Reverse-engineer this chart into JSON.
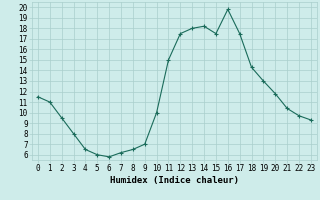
{
  "x": [
    0,
    1,
    2,
    3,
    4,
    5,
    6,
    7,
    8,
    9,
    10,
    11,
    12,
    13,
    14,
    15,
    16,
    17,
    18,
    19,
    20,
    21,
    22,
    23
  ],
  "y": [
    11.5,
    11.0,
    9.5,
    8.0,
    6.5,
    6.0,
    5.8,
    6.2,
    6.5,
    7.0,
    10.0,
    15.0,
    17.5,
    18.0,
    18.2,
    17.5,
    19.8,
    17.5,
    14.3,
    13.0,
    11.8,
    10.4,
    9.7,
    9.3
  ],
  "line_color": "#1a6b5a",
  "marker": "+",
  "marker_size": 3,
  "bg_color": "#ceecea",
  "grid_color": "#aacfcc",
  "xlabel": "Humidex (Indice chaleur)",
  "ylim": [
    5.5,
    20.5
  ],
  "xlim": [
    -0.5,
    23.5
  ],
  "yticks": [
    6,
    7,
    8,
    9,
    10,
    11,
    12,
    13,
    14,
    15,
    16,
    17,
    18,
    19,
    20
  ],
  "xticks": [
    0,
    1,
    2,
    3,
    4,
    5,
    6,
    7,
    8,
    9,
    10,
    11,
    12,
    13,
    14,
    15,
    16,
    17,
    18,
    19,
    20,
    21,
    22,
    23
  ],
  "tick_label_fontsize": 5.5,
  "xlabel_fontsize": 6.5,
  "line_width": 0.8
}
